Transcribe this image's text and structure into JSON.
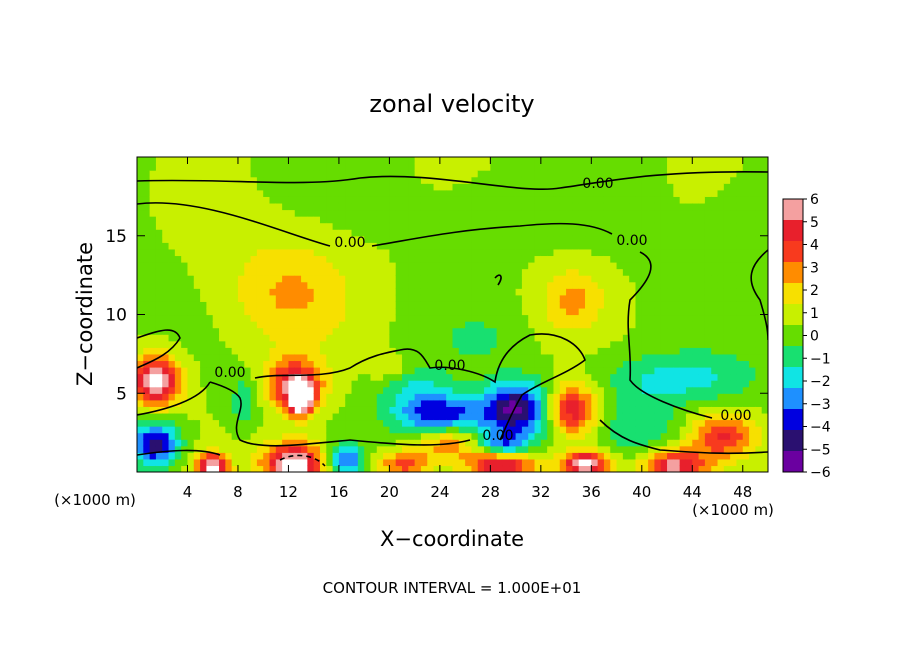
{
  "chart_data": {
    "type": "heatmap",
    "title": "zonal velocity",
    "xlabel": "X−coordinate",
    "ylabel": "Z−coordinate",
    "x_unit_left": "(×1000 m)",
    "x_unit_right": "(×1000 m)",
    "xlim": [
      0,
      50
    ],
    "ylim": [
      0,
      20
    ],
    "x_ticks": [
      "4",
      "8",
      "12",
      "16",
      "20",
      "24",
      "28",
      "32",
      "36",
      "40",
      "44",
      "48"
    ],
    "x_tick_values": [
      4,
      8,
      12,
      16,
      20,
      24,
      28,
      32,
      36,
      40,
      44,
      48
    ],
    "y_ticks": [
      "5",
      "10",
      "15"
    ],
    "y_tick_values": [
      5,
      10,
      15
    ],
    "colorbar": {
      "labels": [
        "6",
        "5",
        "4",
        "3",
        "2",
        "1",
        "0",
        "−1",
        "−2",
        "−3",
        "−4",
        "−5",
        "−6"
      ],
      "values": [
        6,
        5,
        4,
        3,
        2,
        1,
        0,
        -1,
        -2,
        -3,
        -4,
        -5,
        -6
      ],
      "colors": [
        "#f4a0a0",
        "#e8202c",
        "#f83a1e",
        "#ff8c00",
        "#f7e000",
        "#c8f000",
        "#66dd00",
        "#18e070",
        "#10e4e4",
        "#1e90ff",
        "#0000e0",
        "#2a1070",
        "#6a00a0"
      ]
    },
    "contour_label": "0.00",
    "contour_label_count": 8,
    "footer": "CONTOUR INTERVAL = 1.000E+01",
    "blobs": [
      {
        "x": 1.5,
        "z": 5.8,
        "v": 6.5,
        "rx": 2.0,
        "rz": 1.6
      },
      {
        "x": 12.5,
        "z": 5.6,
        "v": 5.2,
        "rx": 2.2,
        "rz": 1.6
      },
      {
        "x": 13.0,
        "z": 4.6,
        "v": 6.5,
        "rx": 1.0,
        "rz": 1.0
      },
      {
        "x": 34.5,
        "z": 4.0,
        "v": 5.0,
        "rx": 2.0,
        "rz": 1.6
      },
      {
        "x": 12.0,
        "z": 11.5,
        "v": 2.2,
        "rx": 5.0,
        "rz": 3.5
      },
      {
        "x": 34.5,
        "z": 11.0,
        "v": 2.2,
        "rx": 2.5,
        "rz": 2.0
      },
      {
        "x": 46.5,
        "z": 2.3,
        "v": 4.0,
        "rx": 2.6,
        "rz": 1.4
      },
      {
        "x": 42.5,
        "z": 0.4,
        "v": 5.5,
        "rx": 2.5,
        "rz": 1.0
      },
      {
        "x": 6.0,
        "z": 0.3,
        "v": 6.5,
        "rx": 1.2,
        "rz": 0.9
      },
      {
        "x": 12.5,
        "z": 0.5,
        "v": 7.0,
        "rx": 2.5,
        "rz": 1.4
      },
      {
        "x": 21.0,
        "z": 0.5,
        "v": 3.5,
        "rx": 2.0,
        "rz": 0.8
      },
      {
        "x": 29.0,
        "z": 0.6,
        "v": 6.0,
        "rx": 2.5,
        "rz": 1.0
      },
      {
        "x": 35.5,
        "z": 0.5,
        "v": 6.5,
        "rx": 2.0,
        "rz": 0.9
      },
      {
        "x": 24.5,
        "z": 2.0,
        "v": 3.0,
        "rx": 2.5,
        "rz": 1.2
      },
      {
        "x": 20.0,
        "z": 6.6,
        "v": 1.6,
        "rx": 1.6,
        "rz": 0.8
      },
      {
        "x": 1.5,
        "z": 1.8,
        "v": -5.5,
        "rx": 1.8,
        "rz": 1.4
      },
      {
        "x": 30.0,
        "z": 4.0,
        "v": -6.0,
        "rx": 2.6,
        "rz": 1.8
      },
      {
        "x": 24.0,
        "z": 3.6,
        "v": -5.0,
        "rx": 3.5,
        "rz": 1.3
      },
      {
        "x": 29.0,
        "z": 1.6,
        "v": -4.5,
        "rx": 2.0,
        "rz": 0.8
      },
      {
        "x": 16.5,
        "z": 0.8,
        "v": -4.0,
        "rx": 1.5,
        "rz": 1.0
      },
      {
        "x": 8.5,
        "z": 4.5,
        "v": -2.0,
        "rx": 1.0,
        "rz": 1.5
      },
      {
        "x": 43.0,
        "z": 6.0,
        "v": -2.2,
        "rx": 6.0,
        "rz": 1.6
      },
      {
        "x": 40.0,
        "z": 3.0,
        "v": -1.8,
        "rx": 3.0,
        "rz": 2.0
      },
      {
        "x": 22.0,
        "z": 5.5,
        "v": -1.8,
        "rx": 3.0,
        "rz": 1.5
      },
      {
        "x": 27.0,
        "z": 8.5,
        "v": -1.0,
        "rx": 3.0,
        "rz": 1.5
      },
      {
        "x": 48.0,
        "z": 14.0,
        "v": -0.6,
        "rx": 4.0,
        "rz": 4.0
      },
      {
        "x": 30.0,
        "z": 17.0,
        "v": -0.4,
        "rx": 8.0,
        "rz": 2.0
      }
    ]
  }
}
